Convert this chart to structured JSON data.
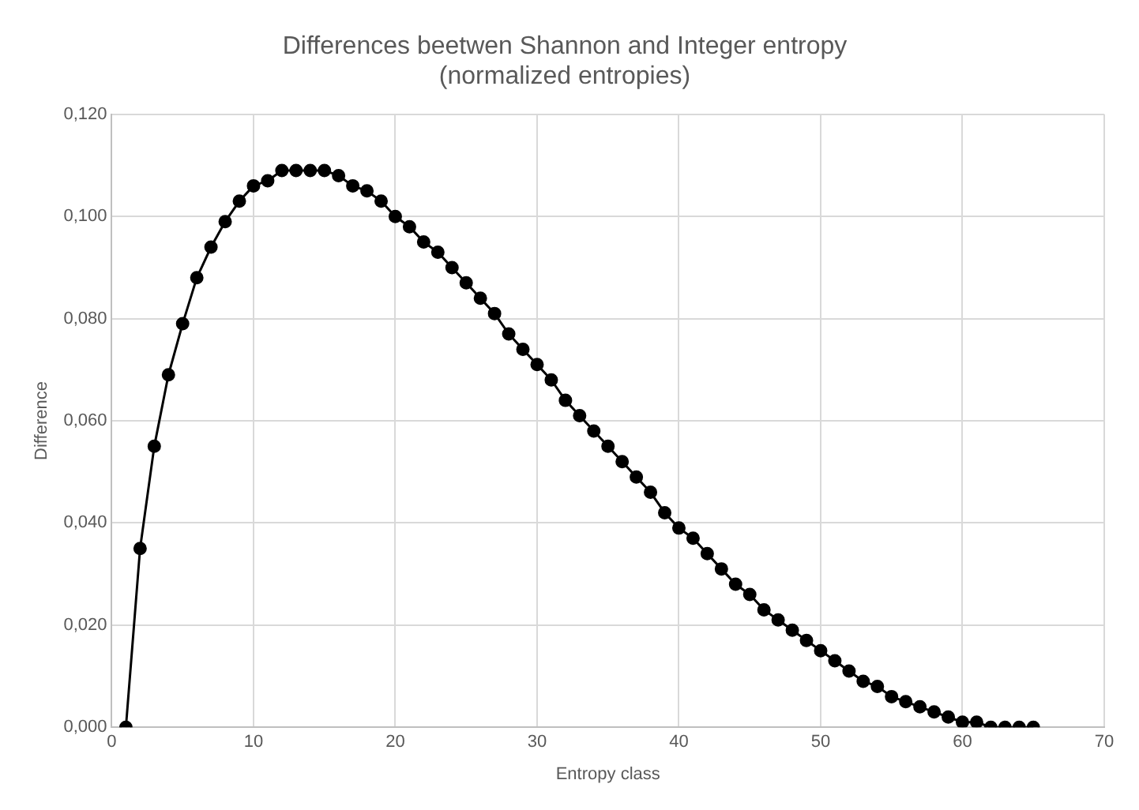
{
  "chart_data": {
    "type": "line",
    "title": "Differences beetwen Shannon and Integer entropy\n(normalized entropies)",
    "xlabel": "Entropy class",
    "ylabel": "Difference",
    "x": [
      1,
      2,
      3,
      4,
      5,
      6,
      7,
      8,
      9,
      10,
      11,
      12,
      13,
      14,
      15,
      16,
      17,
      18,
      19,
      20,
      21,
      22,
      23,
      24,
      25,
      26,
      27,
      28,
      29,
      30,
      31,
      32,
      33,
      34,
      35,
      36,
      37,
      38,
      39,
      40,
      41,
      42,
      43,
      44,
      45,
      46,
      47,
      48,
      49,
      50,
      51,
      52,
      53,
      54,
      55,
      56,
      57,
      58,
      59,
      60,
      61,
      62,
      63,
      64,
      65
    ],
    "series": [
      {
        "color": "#000000",
        "values": [
          0.0,
          0.035,
          0.055,
          0.069,
          0.079,
          0.088,
          0.094,
          0.099,
          0.103,
          0.106,
          0.107,
          0.109,
          0.109,
          0.109,
          0.109,
          0.108,
          0.106,
          0.105,
          0.103,
          0.1,
          0.098,
          0.095,
          0.093,
          0.09,
          0.087,
          0.084,
          0.081,
          0.077,
          0.074,
          0.071,
          0.068,
          0.064,
          0.061,
          0.058,
          0.055,
          0.052,
          0.049,
          0.046,
          0.042,
          0.039,
          0.037,
          0.034,
          0.031,
          0.028,
          0.026,
          0.023,
          0.021,
          0.019,
          0.017,
          0.015,
          0.013,
          0.011,
          0.009,
          0.008,
          0.006,
          0.005,
          0.004,
          0.003,
          0.002,
          0.001,
          0.001,
          0.0,
          0.0,
          0.0,
          0.0
        ]
      }
    ],
    "xlim": [
      0,
      70
    ],
    "xticks": [
      0,
      10,
      20,
      30,
      40,
      50,
      60,
      70
    ],
    "ylim": [
      0,
      0.12
    ],
    "yticks": [
      {
        "value": 0,
        "label": "0,000"
      },
      {
        "value": 0.02,
        "label": "0,020"
      },
      {
        "value": 0.04,
        "label": "0,040"
      },
      {
        "value": 0.06,
        "label": "0,060"
      },
      {
        "value": 0.08,
        "label": "0,080"
      },
      {
        "value": 0.1,
        "label": "0,100"
      },
      {
        "value": 0.12,
        "label": "0,120"
      }
    ],
    "grid": true,
    "marker": "circle",
    "line_style": "solid",
    "legend": false
  }
}
